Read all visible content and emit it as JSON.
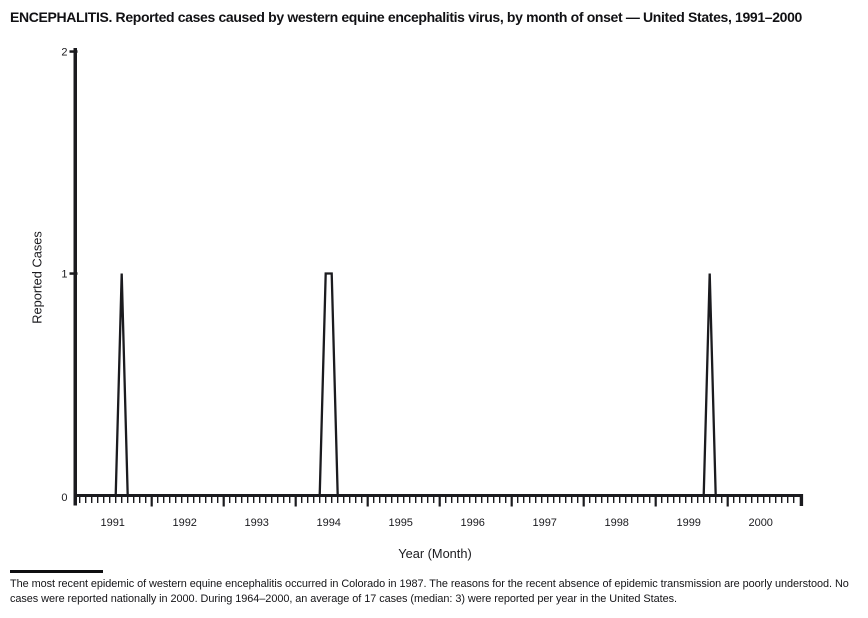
{
  "page": {
    "background": "#ffffff",
    "ink": "#1b1b1f"
  },
  "title": "ENCEPHALITIS. Reported cases caused by western equine encephalitis virus, by month of onset — United States, 1991–2000",
  "chart_data": {
    "type": "line",
    "title": "ENCEPHALITIS. Reported cases caused by western equine encephalitis virus, by month of onset — United States, 1991–2000",
    "xlabel": "Year (Month)",
    "ylabel": "Reported Cases",
    "ylim": [
      0,
      2
    ],
    "yticks": [
      0,
      1,
      2
    ],
    "grid": false,
    "legend": "none",
    "x_unit": "month",
    "years": [
      1991,
      1992,
      1993,
      1994,
      1995,
      1996,
      1997,
      1998,
      1999,
      2000
    ],
    "months_per_year": 12,
    "baseline_value": 0,
    "values_note": "reported cases per month; 0 for every month except the points listed below",
    "nonzero_points": [
      {
        "year": 1991,
        "month": 8,
        "month_name": "Aug",
        "value": 1
      },
      {
        "year": 1994,
        "month": 6,
        "month_name": "Jun",
        "value": 1
      },
      {
        "year": 1994,
        "month": 7,
        "month_name": "Jul",
        "value": 1
      },
      {
        "year": 1999,
        "month": 10,
        "month_name": "Oct",
        "value": 1
      }
    ],
    "line_color": "#1b1b1f"
  },
  "footnote": {
    "text": "The most recent epidemic of western equine encephalitis occurred in Colorado in 1987. The reasons for the recent absence of epidemic transmission are poorly understood. No cases were reported nationally in 2000. During 1964–2000, an average of 17 cases (median: 3) were reported per year in the United States."
  }
}
